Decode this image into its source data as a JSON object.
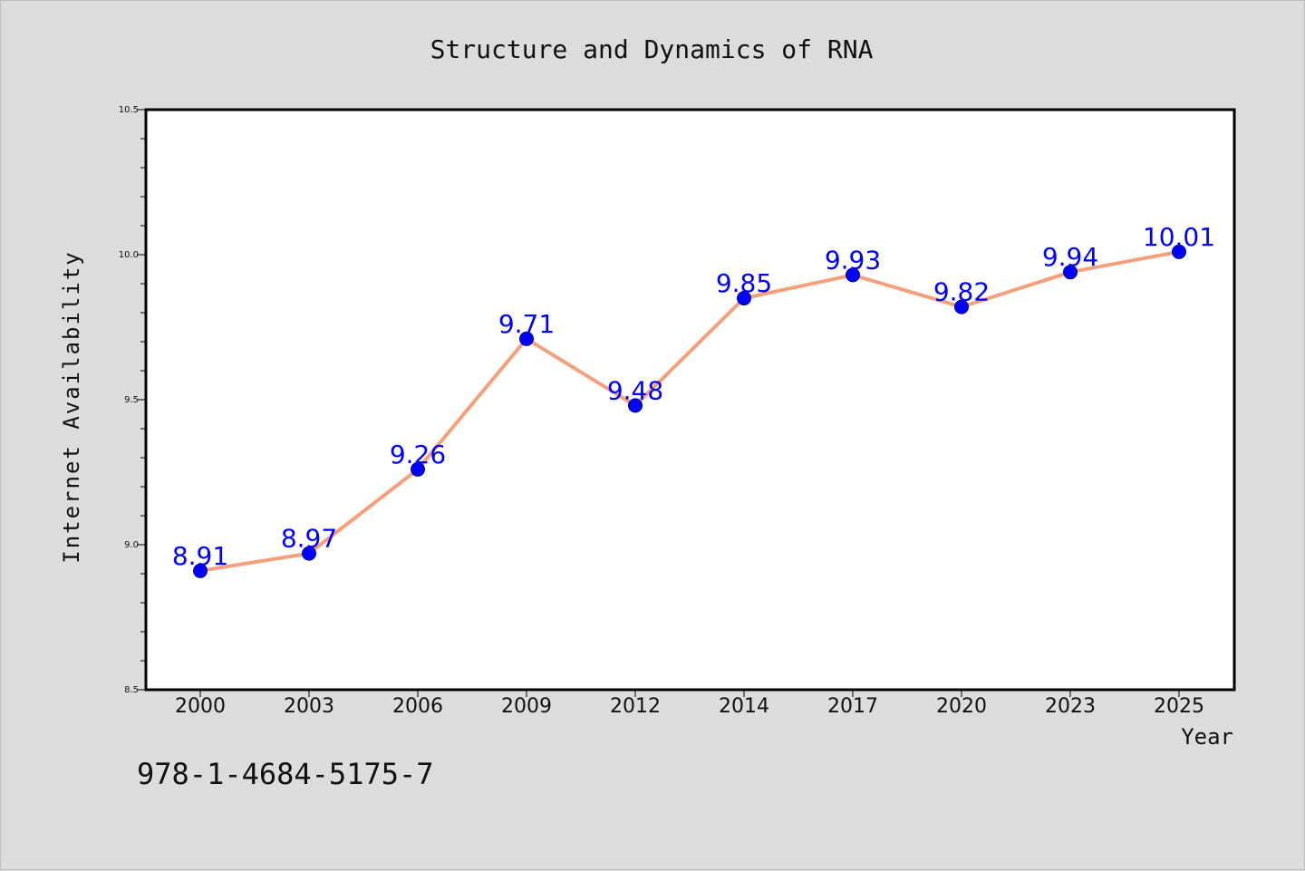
{
  "chart_data": {
    "type": "line",
    "title": "Structure and Dynamics of RNA",
    "xlabel": "Year",
    "ylabel": "Internet Availability",
    "categories": [
      "2000",
      "2003",
      "2006",
      "2009",
      "2012",
      "2014",
      "2017",
      "2020",
      "2023",
      "2025"
    ],
    "series": [
      {
        "values": [
          8.91,
          8.97,
          9.26,
          9.71,
          9.48,
          9.85,
          9.93,
          9.82,
          9.94,
          10.01
        ],
        "labels": [
          "8.91",
          "8.97",
          "9.26",
          "9.71",
          "9.48",
          "9.85",
          "9.93",
          "9.82",
          "9.94",
          "10.01"
        ]
      }
    ],
    "ylim": [
      8.5,
      10.5
    ],
    "yticks": [
      "8.5",
      "9.0",
      "9.5",
      "10.0",
      "10.5"
    ],
    "grid": false,
    "colors": {
      "line": "#f4a07a",
      "marker": "#0000ff",
      "marker_edge": "#000080",
      "label": "#0000ff",
      "background": "#dcdcdc",
      "plot_area": "#ffffff"
    }
  },
  "annotation": "978-1-4684-5175-7"
}
